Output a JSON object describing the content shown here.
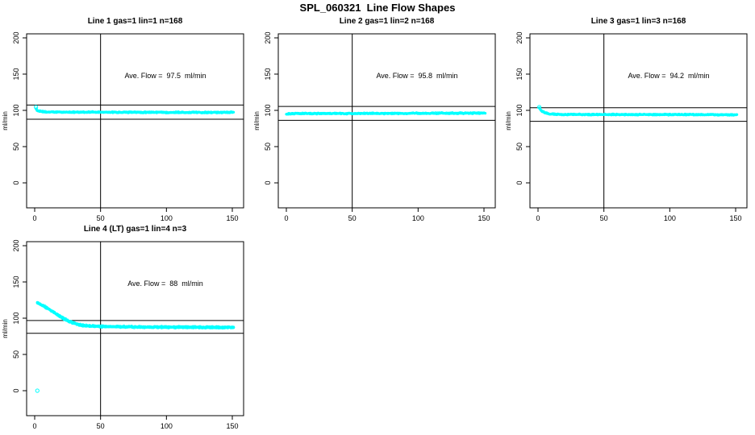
{
  "page": {
    "title": "SPL_060321  Line Flow Shapes"
  },
  "colors": {
    "series": "#00FFFF",
    "axis": "#000000",
    "background": "#FFFFFF"
  },
  "chart_data": [
    {
      "type": "scatter",
      "title": "Line 1 gas=1 lin=1 n=168",
      "annotation": "Ave. Flow =  97.5  ml/min",
      "ave_flow": 97.5,
      "n": 168,
      "ylabel": "ml/min",
      "x_ticks": [
        0,
        50,
        100,
        150
      ],
      "y_ticks": [
        0,
        50,
        100,
        150,
        200
      ],
      "xlim": [
        -6,
        158
      ],
      "ylim": [
        -34,
        206
      ],
      "vline_x": 50,
      "hlines": [
        107.3,
        87.8
      ],
      "series": {
        "x_start": 1,
        "x_end": 151,
        "points": 420,
        "noise": 1.0,
        "passes": 1,
        "profile": [
          [
            1,
            102.5
          ],
          [
            2,
            100
          ],
          [
            3,
            99
          ],
          [
            5,
            98.3
          ],
          [
            8,
            97.8
          ],
          [
            15,
            97.6
          ],
          [
            60,
            97.4
          ],
          [
            151,
            97.2
          ]
        ]
      },
      "outliers": [
        [
          1,
          104.5
        ]
      ]
    },
    {
      "type": "scatter",
      "title": "Line 2 gas=1 lin=2 n=168",
      "annotation": "Ave. Flow =  95.8  ml/min",
      "ave_flow": 95.8,
      "n": 168,
      "ylabel": "ml/min",
      "x_ticks": [
        0,
        50,
        100,
        150
      ],
      "y_ticks": [
        0,
        50,
        100,
        150,
        200
      ],
      "xlim": [
        -6,
        158
      ],
      "ylim": [
        -34,
        206
      ],
      "vline_x": 50,
      "hlines": [
        105.4,
        86.2
      ],
      "series": {
        "x_start": 0,
        "x_end": 151,
        "points": 420,
        "noise": 1.0,
        "passes": 1,
        "profile": [
          [
            0,
            95
          ],
          [
            2,
            95.4
          ],
          [
            10,
            95.6
          ],
          [
            80,
            95.8
          ],
          [
            151,
            96.1
          ]
        ]
      },
      "outliers": []
    },
    {
      "type": "scatter",
      "title": "Line 3 gas=1 lin=3 n=168",
      "annotation": "Ave. Flow =  94.2  ml/min",
      "ave_flow": 94.2,
      "n": 168,
      "ylabel": "ml/min",
      "x_ticks": [
        0,
        50,
        100,
        150
      ],
      "y_ticks": [
        0,
        50,
        100,
        150,
        200
      ],
      "xlim": [
        -6,
        158
      ],
      "ylim": [
        -34,
        206
      ],
      "vline_x": 50,
      "hlines": [
        103.6,
        84.8
      ],
      "series": {
        "x_start": 1,
        "x_end": 151,
        "points": 420,
        "noise": 1.0,
        "passes": 1,
        "profile": [
          [
            1,
            103.5
          ],
          [
            2,
            101
          ],
          [
            3,
            99
          ],
          [
            5,
            96.8
          ],
          [
            8,
            95.2
          ],
          [
            12,
            94.6
          ],
          [
            20,
            94.3
          ],
          [
            151,
            94
          ]
        ]
      },
      "outliers": [
        [
          1,
          104.5
        ]
      ]
    },
    {
      "type": "scatter",
      "title": "Line 4 (LT) gas=1 lin=4 n=3",
      "annotation": "Ave. Flow =  88  ml/min",
      "ave_flow": 88,
      "n": 3,
      "ylabel": "ml/min",
      "x_ticks": [
        0,
        50,
        100,
        150
      ],
      "y_ticks": [
        0,
        50,
        100,
        150,
        200
      ],
      "xlim": [
        -6,
        158
      ],
      "ylim": [
        -34,
        206
      ],
      "vline_x": 50,
      "hlines": [
        96.8,
        79.2
      ],
      "series": {
        "x_start": 2,
        "x_end": 151,
        "points": 230,
        "noise": 1.1,
        "passes": 3,
        "profile": [
          [
            2,
            121
          ],
          [
            5,
            118.5
          ],
          [
            8,
            115.5
          ],
          [
            11,
            112
          ],
          [
            14,
            108.5
          ],
          [
            17,
            105
          ],
          [
            20,
            101.5
          ],
          [
            23,
            98.5
          ],
          [
            26,
            95.8
          ],
          [
            29,
            93.5
          ],
          [
            32,
            91.8
          ],
          [
            35,
            90.5
          ],
          [
            40,
            89.3
          ],
          [
            45,
            88.8
          ],
          [
            55,
            88.3
          ],
          [
            80,
            87.8
          ],
          [
            120,
            87.4
          ],
          [
            151,
            87.2
          ]
        ]
      },
      "outliers": [
        [
          2,
          0
        ]
      ]
    }
  ]
}
